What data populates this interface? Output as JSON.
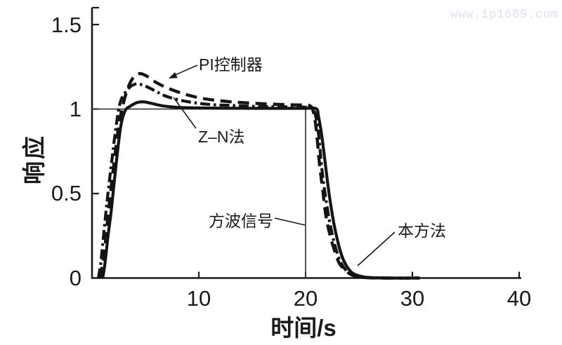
{
  "watermark": {
    "text": "www.ip1689.com",
    "color": "#dedef2"
  },
  "chart_data": {
    "type": "line",
    "title": "",
    "xlabel": "时间/s",
    "ylabel": "响应",
    "xlim": [
      0,
      40
    ],
    "ylim": [
      0,
      1.6
    ],
    "grid": false,
    "legend_position": "none (inline annotations with leader lines)",
    "xticks": {
      "values": [
        10,
        20,
        30,
        40
      ],
      "labels": [
        "10",
        "20",
        "30",
        "40"
      ]
    },
    "yticks": {
      "values": [
        0,
        0.5,
        1,
        1.5
      ],
      "labels": [
        "0",
        "0.5",
        "1",
        "1.5"
      ]
    },
    "colors": {
      "curve": "#141414",
      "reference": "#3f3f3f",
      "axis": "#1a1a1a"
    },
    "series": [
      {
        "name": "方波信号",
        "style": "reference",
        "points": [
          [
            0,
            1
          ],
          [
            20,
            1
          ],
          [
            20,
            0
          ]
        ]
      },
      {
        "name": "PI控制器",
        "style": "dashed",
        "points": [
          [
            0.8,
            0
          ],
          [
            1.0,
            0.09
          ],
          [
            1.2,
            0.18
          ],
          [
            1.6,
            0.43
          ],
          [
            2.1,
            0.7
          ],
          [
            2.5,
            0.9
          ],
          [
            3.0,
            1.05
          ],
          [
            3.5,
            1.146
          ],
          [
            4.0,
            1.196
          ],
          [
            4.5,
            1.21
          ],
          [
            5.1,
            1.196
          ],
          [
            5.7,
            1.169
          ],
          [
            6.4,
            1.144
          ],
          [
            7.2,
            1.121
          ],
          [
            8.2,
            1.098
          ],
          [
            9.3,
            1.077
          ],
          [
            10.8,
            1.058
          ],
          [
            12.8,
            1.044
          ],
          [
            15.1,
            1.034
          ],
          [
            17.7,
            1.027
          ],
          [
            19.3,
            1.024
          ],
          [
            20.3,
            1.022
          ],
          [
            20.7,
            0.99
          ],
          [
            21.0,
            0.88
          ],
          [
            21.3,
            0.675
          ],
          [
            21.6,
            0.525
          ],
          [
            21.9,
            0.37
          ],
          [
            22.3,
            0.25
          ],
          [
            22.8,
            0.146
          ],
          [
            23.2,
            0.083
          ],
          [
            23.8,
            0.042
          ],
          [
            24.3,
            0.019
          ],
          [
            24.9,
            0.007
          ],
          [
            25.8,
            0.002
          ],
          [
            27.2,
            0
          ],
          [
            30.5,
            0
          ]
        ]
      },
      {
        "name": "Z–N法",
        "style": "dashdot",
        "points": [
          [
            0.6,
            0
          ],
          [
            0.8,
            0.08
          ],
          [
            1.0,
            0.2
          ],
          [
            1.4,
            0.45
          ],
          [
            1.9,
            0.72
          ],
          [
            2.3,
            0.92
          ],
          [
            2.7,
            1.05
          ],
          [
            3.4,
            1.12
          ],
          [
            3.9,
            1.144
          ],
          [
            4.4,
            1.148
          ],
          [
            5.1,
            1.133
          ],
          [
            5.9,
            1.108
          ],
          [
            6.8,
            1.079
          ],
          [
            8.0,
            1.056
          ],
          [
            9.5,
            1.038
          ],
          [
            11.1,
            1.027
          ],
          [
            13.1,
            1.021
          ],
          [
            15.7,
            1.015
          ],
          [
            18.4,
            1.013
          ],
          [
            20.0,
            1.011
          ],
          [
            20.6,
            1.008
          ],
          [
            20.9,
            0.97
          ],
          [
            21.2,
            0.86
          ],
          [
            21.5,
            0.66
          ],
          [
            21.8,
            0.51
          ],
          [
            22.2,
            0.35
          ],
          [
            22.6,
            0.23
          ],
          [
            23.0,
            0.14
          ],
          [
            23.4,
            0.08
          ],
          [
            23.9,
            0.038
          ],
          [
            24.5,
            0.017
          ],
          [
            25.1,
            0.006
          ],
          [
            25.9,
            0.002
          ],
          [
            27.6,
            0
          ],
          [
            30.7,
            0
          ]
        ]
      },
      {
        "name": "本方法",
        "style": "solid",
        "points": [
          [
            1.0,
            0
          ],
          [
            1.2,
            0.08
          ],
          [
            1.5,
            0.25
          ],
          [
            1.8,
            0.4
          ],
          [
            2.3,
            0.7
          ],
          [
            2.7,
            0.9
          ],
          [
            3.1,
            0.99
          ],
          [
            3.6,
            1.018
          ],
          [
            4.3,
            1.04
          ],
          [
            4.9,
            1.042
          ],
          [
            5.6,
            1.033
          ],
          [
            6.6,
            1.019
          ],
          [
            8.0,
            1.01
          ],
          [
            9.8,
            1.007
          ],
          [
            12.4,
            1.005
          ],
          [
            15.7,
            1.004
          ],
          [
            18.0,
            1.004
          ],
          [
            20.0,
            1.004
          ],
          [
            21.0,
            1.002
          ],
          [
            21.2,
            0.96
          ],
          [
            21.5,
            0.85
          ],
          [
            21.8,
            0.7
          ],
          [
            22.2,
            0.5
          ],
          [
            22.6,
            0.34
          ],
          [
            23.0,
            0.22
          ],
          [
            23.4,
            0.13
          ],
          [
            23.8,
            0.075
          ],
          [
            24.3,
            0.034
          ],
          [
            24.9,
            0.015
          ],
          [
            25.5,
            0.006
          ],
          [
            26.2,
            0.002
          ],
          [
            27.8,
            0
          ],
          [
            30.7,
            0
          ]
        ]
      }
    ],
    "annotations": [
      {
        "text": "PI控制器",
        "target_series": "PI控制器",
        "has_arrowhead": true
      },
      {
        "text": "Z–N法",
        "target_series": "Z–N法",
        "has_arrowhead": false
      },
      {
        "text": "方波信号",
        "target_series": "方波信号",
        "has_arrowhead": false
      },
      {
        "text": "本方法",
        "target_series": "本方法",
        "has_arrowhead": false
      }
    ]
  }
}
